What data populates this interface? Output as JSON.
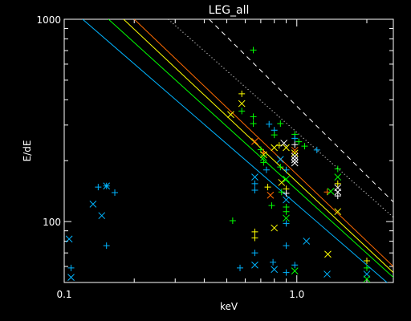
{
  "chart_data": {
    "type": "scatter",
    "title": "LEG_all",
    "xlabel": "keV",
    "ylabel": "E/dE",
    "xscale": "log",
    "yscale": "log",
    "xlim": [
      0.1,
      2.6
    ],
    "ylim": [
      50,
      1000
    ],
    "grid": false,
    "background": "#000000",
    "axis_color": "#ffffff",
    "x_ticks": [
      {
        "value": 0.1,
        "label": "0.1"
      },
      {
        "value": 1.0,
        "label": "1.0"
      }
    ],
    "y_ticks": [
      {
        "value": 100,
        "label": "100"
      },
      {
        "value": 1000,
        "label": "1000"
      }
    ],
    "lines": [
      {
        "color": "#ff6a00",
        "style": "solid",
        "x": [
          0.2,
          2.6
        ],
        "y": [
          1000,
          60
        ]
      },
      {
        "color": "#ffff00",
        "style": "solid",
        "x": [
          0.18,
          2.6
        ],
        "y": [
          1000,
          56
        ]
      },
      {
        "color": "#00ff00",
        "style": "solid",
        "x": [
          0.155,
          2.6
        ],
        "y": [
          1000,
          53
        ]
      },
      {
        "color": "#00b4ff",
        "style": "solid",
        "x": [
          0.12,
          2.6
        ],
        "y": [
          1000,
          47
        ]
      },
      {
        "color": "#ffffff",
        "style": "dotted",
        "x": [
          0.28,
          2.6
        ],
        "y": [
          1000,
          105
        ]
      },
      {
        "color": "#ffffff",
        "style": "dashed",
        "x": [
          0.42,
          2.6
        ],
        "y": [
          1000,
          125
        ]
      }
    ],
    "points": [
      {
        "x": 0.105,
        "y": 82,
        "marker": "x",
        "color": "#00b4ff"
      },
      {
        "x": 0.107,
        "y": 59,
        "marker": "+",
        "color": "#00b4ff"
      },
      {
        "x": 0.107,
        "y": 53,
        "marker": "x",
        "color": "#00b4ff"
      },
      {
        "x": 0.133,
        "y": 122,
        "marker": "x",
        "color": "#00b4ff"
      },
      {
        "x": 0.14,
        "y": 148,
        "marker": "+",
        "color": "#00b4ff"
      },
      {
        "x": 0.145,
        "y": 107,
        "marker": "x",
        "color": "#00b4ff"
      },
      {
        "x": 0.152,
        "y": 150,
        "marker": "*",
        "color": "#00b4ff"
      },
      {
        "x": 0.152,
        "y": 76,
        "marker": "+",
        "color": "#00b4ff"
      },
      {
        "x": 0.165,
        "y": 139,
        "marker": "+",
        "color": "#00b4ff"
      },
      {
        "x": 0.52,
        "y": 338,
        "marker": "x",
        "color": "#ffff00"
      },
      {
        "x": 0.53,
        "y": 101,
        "marker": "+",
        "color": "#00ff00"
      },
      {
        "x": 0.57,
        "y": 59,
        "marker": "+",
        "color": "#00b4ff"
      },
      {
        "x": 0.58,
        "y": 428,
        "marker": "+",
        "color": "#ffff00"
      },
      {
        "x": 0.58,
        "y": 383,
        "marker": "x",
        "color": "#ffff00"
      },
      {
        "x": 0.58,
        "y": 352,
        "marker": "+",
        "color": "#00ff00"
      },
      {
        "x": 0.65,
        "y": 704,
        "marker": "+",
        "color": "#00ff00"
      },
      {
        "x": 0.65,
        "y": 330,
        "marker": "+",
        "color": "#00ff00"
      },
      {
        "x": 0.65,
        "y": 305,
        "marker": "+",
        "color": "#00ff00"
      },
      {
        "x": 0.66,
        "y": 249,
        "marker": "x",
        "color": "#ff6a00"
      },
      {
        "x": 0.66,
        "y": 166,
        "marker": "x",
        "color": "#00b4ff"
      },
      {
        "x": 0.66,
        "y": 154,
        "marker": "+",
        "color": "#00b4ff"
      },
      {
        "x": 0.66,
        "y": 143,
        "marker": "+",
        "color": "#00b4ff"
      },
      {
        "x": 0.66,
        "y": 89,
        "marker": "+",
        "color": "#ffff00"
      },
      {
        "x": 0.66,
        "y": 83,
        "marker": "+",
        "color": "#ffff00"
      },
      {
        "x": 0.66,
        "y": 70,
        "marker": "+",
        "color": "#00b4ff"
      },
      {
        "x": 0.66,
        "y": 61,
        "marker": "x",
        "color": "#00b4ff"
      },
      {
        "x": 0.7,
        "y": 227,
        "marker": "+",
        "color": "#00ff00"
      },
      {
        "x": 0.72,
        "y": 220,
        "marker": "+",
        "color": "#ff6a00"
      },
      {
        "x": 0.72,
        "y": 214,
        "marker": "x",
        "color": "#ffff00"
      },
      {
        "x": 0.72,
        "y": 207,
        "marker": "x",
        "color": "#00ff00"
      },
      {
        "x": 0.72,
        "y": 196,
        "marker": "+",
        "color": "#00ff00"
      },
      {
        "x": 0.74,
        "y": 180,
        "marker": "+",
        "color": "#00b4ff"
      },
      {
        "x": 0.75,
        "y": 148,
        "marker": "+",
        "color": "#ffff00"
      },
      {
        "x": 0.76,
        "y": 303,
        "marker": "+",
        "color": "#00b4ff"
      },
      {
        "x": 0.77,
        "y": 135,
        "marker": "x",
        "color": "#ff6a00"
      },
      {
        "x": 0.78,
        "y": 120,
        "marker": "+",
        "color": "#00ff00"
      },
      {
        "x": 0.79,
        "y": 63,
        "marker": "+",
        "color": "#00b4ff"
      },
      {
        "x": 0.8,
        "y": 283,
        "marker": "+",
        "color": "#00b4ff"
      },
      {
        "x": 0.8,
        "y": 268,
        "marker": "+",
        "color": "#00ff00"
      },
      {
        "x": 0.8,
        "y": 232,
        "marker": "x",
        "color": "#ffff00"
      },
      {
        "x": 0.8,
        "y": 93,
        "marker": "x",
        "color": "#ffff00"
      },
      {
        "x": 0.8,
        "y": 58,
        "marker": "x",
        "color": "#00b4ff"
      },
      {
        "x": 0.84,
        "y": 238,
        "marker": "+",
        "color": "#ffff00"
      },
      {
        "x": 0.85,
        "y": 305,
        "marker": "+",
        "color": "#00ff00"
      },
      {
        "x": 0.85,
        "y": 203,
        "marker": "x",
        "color": "#00b4ff"
      },
      {
        "x": 0.85,
        "y": 186,
        "marker": "+",
        "color": "#00ff00"
      },
      {
        "x": 0.86,
        "y": 156,
        "marker": "x",
        "color": "#ffff00"
      },
      {
        "x": 0.86,
        "y": 140,
        "marker": "+",
        "color": "#00ff00"
      },
      {
        "x": 0.88,
        "y": 244,
        "marker": "x",
        "color": "#ffffff"
      },
      {
        "x": 0.9,
        "y": 232,
        "marker": "x",
        "color": "#ffff00"
      },
      {
        "x": 0.9,
        "y": 180,
        "marker": "+",
        "color": "#00b4ff"
      },
      {
        "x": 0.9,
        "y": 162,
        "marker": "x",
        "color": "#00ff00"
      },
      {
        "x": 0.9,
        "y": 145,
        "marker": "+",
        "color": "#ffff00"
      },
      {
        "x": 0.9,
        "y": 138,
        "marker": "+",
        "color": "#ffffff"
      },
      {
        "x": 0.9,
        "y": 128,
        "marker": "x",
        "color": "#00b4ff"
      },
      {
        "x": 0.9,
        "y": 118,
        "marker": "+",
        "color": "#00ff00"
      },
      {
        "x": 0.9,
        "y": 112,
        "marker": "+",
        "color": "#00ff00"
      },
      {
        "x": 0.9,
        "y": 104,
        "marker": "x",
        "color": "#00ff00"
      },
      {
        "x": 0.9,
        "y": 98,
        "marker": "+",
        "color": "#00b4ff"
      },
      {
        "x": 0.9,
        "y": 76,
        "marker": "+",
        "color": "#00b4ff"
      },
      {
        "x": 0.9,
        "y": 56,
        "marker": "+",
        "color": "#00b4ff"
      },
      {
        "x": 0.98,
        "y": 270,
        "marker": "+",
        "color": "#00ff00"
      },
      {
        "x": 0.98,
        "y": 258,
        "marker": "+",
        "color": "#00b4ff"
      },
      {
        "x": 0.98,
        "y": 240,
        "marker": "+",
        "color": "#ffffff"
      },
      {
        "x": 0.98,
        "y": 225,
        "marker": "x",
        "color": "#ff6a00"
      },
      {
        "x": 0.98,
        "y": 218,
        "marker": "x",
        "color": "#ffff00"
      },
      {
        "x": 0.98,
        "y": 210,
        "marker": "x",
        "color": "#ffffff"
      },
      {
        "x": 0.98,
        "y": 202,
        "marker": "x",
        "color": "#ffffff"
      },
      {
        "x": 0.98,
        "y": 195,
        "marker": "x",
        "color": "#ffffff"
      },
      {
        "x": 0.98,
        "y": 61,
        "marker": "+",
        "color": "#00b4ff"
      },
      {
        "x": 0.98,
        "y": 57,
        "marker": "x",
        "color": "#00ff00"
      },
      {
        "x": 1.02,
        "y": 248,
        "marker": "+",
        "color": "#00ff00"
      },
      {
        "x": 1.08,
        "y": 236,
        "marker": "+",
        "color": "#00ff00"
      },
      {
        "x": 1.1,
        "y": 80,
        "marker": "x",
        "color": "#00b4ff"
      },
      {
        "x": 1.22,
        "y": 226,
        "marker": "+",
        "color": "#00b4ff"
      },
      {
        "x": 1.35,
        "y": 140,
        "marker": "+",
        "color": "#ff6a00"
      },
      {
        "x": 1.35,
        "y": 55,
        "marker": "x",
        "color": "#00b4ff"
      },
      {
        "x": 1.36,
        "y": 69,
        "marker": "x",
        "color": "#ffff00"
      },
      {
        "x": 1.4,
        "y": 141,
        "marker": "x",
        "color": "#00ff00"
      },
      {
        "x": 1.5,
        "y": 182,
        "marker": "+",
        "color": "#00ff00"
      },
      {
        "x": 1.5,
        "y": 166,
        "marker": "x",
        "color": "#00ff00"
      },
      {
        "x": 1.5,
        "y": 154,
        "marker": "+",
        "color": "#ffff00"
      },
      {
        "x": 1.5,
        "y": 147,
        "marker": "x",
        "color": "#ffffff"
      },
      {
        "x": 1.5,
        "y": 140,
        "marker": "x",
        "color": "#ffffff"
      },
      {
        "x": 1.5,
        "y": 134,
        "marker": "+",
        "color": "#ffffff"
      },
      {
        "x": 1.5,
        "y": 112,
        "marker": "x",
        "color": "#ffff00"
      },
      {
        "x": 2.0,
        "y": 64,
        "marker": "+",
        "color": "#ffff00"
      },
      {
        "x": 2.0,
        "y": 59,
        "marker": "+",
        "color": "#00ff00"
      },
      {
        "x": 2.0,
        "y": 55,
        "marker": "x",
        "color": "#00b4ff"
      },
      {
        "x": 2.0,
        "y": 52,
        "marker": "x",
        "color": "#00ff00"
      }
    ]
  }
}
